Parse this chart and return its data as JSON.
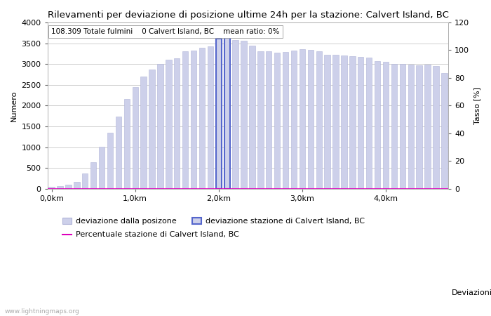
{
  "title": "Rilevamenti per deviazione di posizione ultime 24h per la stazione: Calvert Island, BC",
  "subtitle": "108.309 Totale fulmini    0 Calvert Island, BC    mean ratio: 0%",
  "ylabel_left": "Numero",
  "ylabel_right": "Tasso [%]",
  "xlabel": "Deviazioni",
  "ylim_left": [
    0,
    4000
  ],
  "ylim_right": [
    0,
    120
  ],
  "yticks_left": [
    0,
    500,
    1000,
    1500,
    2000,
    2500,
    3000,
    3500,
    4000
  ],
  "yticks_right": [
    0,
    20,
    40,
    60,
    80,
    100,
    120
  ],
  "xtick_labels": [
    "0,0km",
    "1,0km",
    "2,0km",
    "3,0km",
    "4,0km"
  ],
  "xtick_positions": [
    0,
    10,
    20,
    30,
    40
  ],
  "bar_color": "#cdd0ea",
  "bar_color_station": "#5566cc",
  "bar_edge_color": "#b0b4d8",
  "line_color": "#dd00bb",
  "bar_values": [
    50,
    60,
    90,
    170,
    360,
    630,
    1010,
    1350,
    1730,
    2150,
    2450,
    2700,
    2860,
    3000,
    3100,
    3140,
    3310,
    3330,
    3390,
    3430,
    3610,
    3630,
    3570,
    3560,
    3450,
    3300,
    3310,
    3270,
    3290,
    3330,
    3350,
    3340,
    3310,
    3230,
    3230,
    3200,
    3190,
    3170,
    3150,
    3070,
    3050,
    3000,
    3000,
    2980,
    2970,
    2990,
    2950,
    2790
  ],
  "station_bar_indices": [
    20,
    21
  ],
  "n_bars": 48,
  "legend_label_1": "deviazione dalla posizone",
  "legend_label_2": "deviazione stazione di Calvert Island, BC",
  "legend_label_3": "Percentuale stazione di Calvert Island, BC",
  "watermark": "www.lightningmaps.org",
  "title_fontsize": 9.5,
  "subtitle_fontsize": 7.5,
  "axis_fontsize": 8,
  "tick_fontsize": 8
}
